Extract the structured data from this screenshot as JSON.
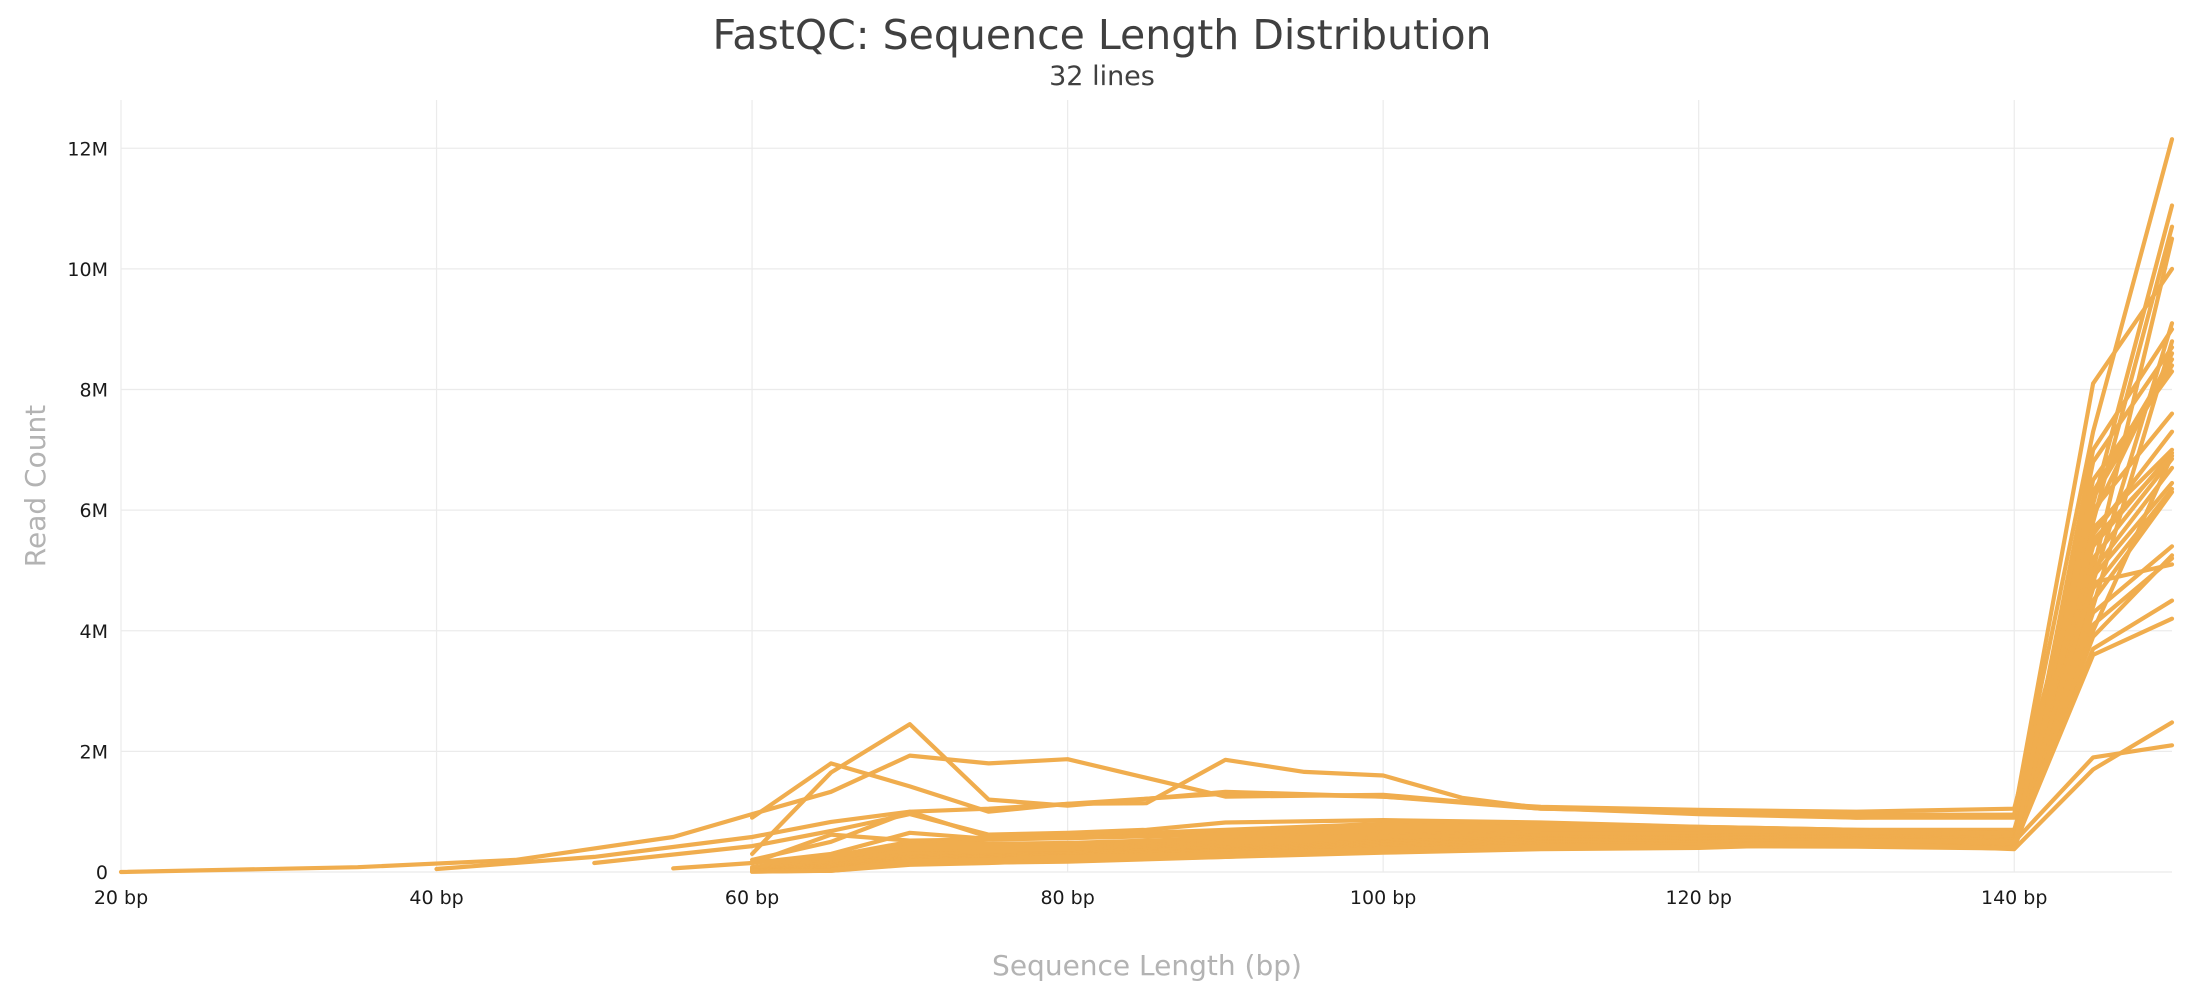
{
  "chart_data": {
    "type": "line",
    "title": "FastQC: Sequence Length Distribution",
    "subtitle": "32 lines",
    "xlabel": "Sequence Length (bp)",
    "ylabel": "Read Count",
    "xlim": [
      20,
      150
    ],
    "ylim": [
      0,
      12800000
    ],
    "x_ticks": [
      20,
      40,
      60,
      80,
      100,
      120,
      140
    ],
    "x_tick_labels": [
      "20 bp",
      "40 bp",
      "60 bp",
      "80 bp",
      "100 bp",
      "120 bp",
      "140 bp"
    ],
    "y_ticks": [
      0,
      2000000,
      4000000,
      6000000,
      8000000,
      10000000,
      12000000
    ],
    "y_tick_labels": [
      "0",
      "2M",
      "4M",
      "6M",
      "8M",
      "10M",
      "12M"
    ],
    "grid": true,
    "legend": "none",
    "line_color": "#f0ad4e",
    "series": [
      {
        "x": [
          20,
          35,
          45,
          55,
          60,
          65,
          70,
          75,
          80,
          90,
          100,
          110,
          120,
          130,
          140,
          145,
          150
        ],
        "values": [
          0,
          80000,
          200000,
          580000,
          960000,
          1330000,
          1930000,
          1800000,
          1870000,
          1250000,
          1280000,
          1050000,
          1000000,
          900000,
          950000,
          8100000,
          10000000
        ]
      },
      {
        "x": [
          60,
          65,
          70,
          75,
          80,
          85,
          90,
          95,
          100,
          105,
          110,
          120,
          130,
          140,
          145,
          150
        ],
        "values": [
          900000,
          1800000,
          1420000,
          1000000,
          1130000,
          1140000,
          1860000,
          1660000,
          1600000,
          1230000,
          1060000,
          960000,
          900000,
          900000,
          7300000,
          12150000
        ]
      },
      {
        "x": [
          60,
          65,
          70,
          75,
          80,
          90,
          100,
          110,
          120,
          130,
          140,
          145,
          150
        ],
        "values": [
          300000,
          1650000,
          2450000,
          1200000,
          1100000,
          1330000,
          1250000,
          1080000,
          1030000,
          1000000,
          1050000,
          6100000,
          11050000
        ]
      },
      {
        "x": [
          40,
          50,
          60,
          65,
          70,
          75,
          80,
          90,
          100,
          110,
          120,
          130,
          140,
          145,
          150
        ],
        "values": [
          50000,
          250000,
          580000,
          830000,
          1000000,
          1050000,
          1130000,
          1300000,
          1250000,
          1050000,
          1000000,
          950000,
          950000,
          5800000,
          10700000
        ]
      },
      {
        "x": [
          50,
          60,
          65,
          70,
          75,
          80,
          85,
          90,
          100,
          110,
          120,
          130,
          140,
          145,
          150
        ],
        "values": [
          150000,
          430000,
          680000,
          960000,
          620000,
          650000,
          700000,
          820000,
          860000,
          820000,
          750000,
          700000,
          700000,
          5000000,
          10500000
        ]
      },
      {
        "x": [
          60,
          65,
          70,
          75,
          80,
          90,
          100,
          110,
          120,
          130,
          140,
          145,
          150
        ],
        "values": [
          200000,
          500000,
          1000000,
          580000,
          600000,
          700000,
          800000,
          780000,
          750000,
          700000,
          650000,
          4800000,
          9100000
        ]
      },
      {
        "x": [
          60,
          65,
          70,
          75,
          80,
          90,
          100,
          110,
          120,
          130,
          140,
          145,
          150
        ],
        "values": [
          150000,
          300000,
          650000,
          550000,
          560000,
          650000,
          780000,
          750000,
          700000,
          680000,
          650000,
          4400000,
          8800000
        ]
      },
      {
        "x": [
          55,
          60,
          65,
          70,
          80,
          90,
          100,
          110,
          120,
          130,
          140,
          145,
          150
        ],
        "values": [
          60000,
          150000,
          620000,
          520000,
          560000,
          620000,
          720000,
          720000,
          700000,
          680000,
          640000,
          5900000,
          8600000
        ]
      },
      {
        "x": [
          60,
          65,
          70,
          75,
          80,
          90,
          100,
          110,
          120,
          130,
          140,
          145,
          150
        ],
        "values": [
          80000,
          260000,
          500000,
          470000,
          480000,
          560000,
          660000,
          680000,
          670000,
          660000,
          620000,
          6200000,
          8400000
        ]
      },
      {
        "x": [
          60,
          65,
          70,
          80,
          90,
          100,
          110,
          120,
          130,
          140,
          145,
          150
        ],
        "values": [
          60000,
          200000,
          460000,
          420000,
          520000,
          620000,
          650000,
          650000,
          640000,
          600000,
          6500000,
          8300000
        ]
      },
      {
        "x": [
          60,
          65,
          70,
          80,
          90,
          100,
          110,
          120,
          130,
          140,
          145,
          150
        ],
        "values": [
          50000,
          180000,
          420000,
          400000,
          490000,
          600000,
          630000,
          630000,
          620000,
          580000,
          6000000,
          7600000
        ]
      },
      {
        "x": [
          60,
          65,
          70,
          80,
          90,
          100,
          110,
          120,
          130,
          140,
          145,
          150
        ],
        "values": [
          40000,
          150000,
          380000,
          380000,
          470000,
          580000,
          610000,
          610000,
          600000,
          560000,
          5600000,
          7300000
        ]
      },
      {
        "x": [
          60,
          65,
          70,
          80,
          90,
          100,
          110,
          120,
          130,
          140,
          145,
          150
        ],
        "values": [
          40000,
          140000,
          360000,
          360000,
          450000,
          560000,
          600000,
          600000,
          590000,
          560000,
          5400000,
          6950000
        ]
      },
      {
        "x": [
          60,
          65,
          70,
          80,
          90,
          100,
          110,
          120,
          130,
          140,
          145,
          150
        ],
        "values": [
          30000,
          120000,
          330000,
          340000,
          430000,
          540000,
          580000,
          590000,
          580000,
          540000,
          5200000,
          6850000
        ]
      },
      {
        "x": [
          60,
          65,
          70,
          80,
          90,
          100,
          110,
          120,
          130,
          140,
          145,
          150
        ],
        "values": [
          30000,
          110000,
          310000,
          320000,
          410000,
          520000,
          570000,
          580000,
          570000,
          530000,
          5000000,
          6700000
        ]
      },
      {
        "x": [
          60,
          65,
          70,
          80,
          90,
          100,
          110,
          120,
          130,
          140,
          145,
          150
        ],
        "values": [
          30000,
          100000,
          300000,
          310000,
          400000,
          510000,
          560000,
          570000,
          560000,
          520000,
          4900000,
          6450000
        ]
      },
      {
        "x": [
          60,
          65,
          70,
          80,
          90,
          100,
          110,
          120,
          130,
          140,
          145,
          150
        ],
        "values": [
          20000,
          90000,
          280000,
          300000,
          380000,
          500000,
          550000,
          560000,
          550000,
          510000,
          4700000,
          6350000
        ]
      },
      {
        "x": [
          60,
          65,
          70,
          80,
          90,
          100,
          110,
          120,
          130,
          140,
          145,
          150
        ],
        "values": [
          20000,
          80000,
          260000,
          290000,
          370000,
          490000,
          540000,
          550000,
          540000,
          500000,
          4500000,
          6300000
        ]
      },
      {
        "x": [
          60,
          65,
          70,
          80,
          90,
          100,
          110,
          120,
          130,
          140,
          145,
          150
        ],
        "values": [
          20000,
          70000,
          250000,
          280000,
          360000,
          480000,
          530000,
          540000,
          530000,
          490000,
          4300000,
          5400000
        ]
      },
      {
        "x": [
          60,
          65,
          70,
          80,
          90,
          100,
          110,
          120,
          130,
          140,
          145,
          150
        ],
        "values": [
          20000,
          60000,
          240000,
          270000,
          350000,
          470000,
          520000,
          530000,
          520000,
          480000,
          4100000,
          5200000
        ]
      },
      {
        "x": [
          60,
          65,
          70,
          80,
          90,
          100,
          110,
          120,
          130,
          140,
          145,
          150
        ],
        "values": [
          15000,
          60000,
          230000,
          260000,
          340000,
          460000,
          510000,
          520000,
          510000,
          470000,
          4800000,
          5100000
        ]
      },
      {
        "x": [
          60,
          65,
          70,
          80,
          90,
          100,
          110,
          120,
          130,
          140,
          145,
          150
        ],
        "values": [
          15000,
          50000,
          220000,
          250000,
          330000,
          450000,
          500000,
          510000,
          500000,
          460000,
          3900000,
          5250000
        ]
      },
      {
        "x": [
          60,
          65,
          70,
          80,
          90,
          100,
          110,
          120,
          130,
          140,
          145,
          150
        ],
        "values": [
          15000,
          50000,
          210000,
          240000,
          320000,
          440000,
          490000,
          500000,
          490000,
          450000,
          3700000,
          4500000
        ]
      },
      {
        "x": [
          60,
          65,
          70,
          80,
          90,
          100,
          110,
          120,
          130,
          140,
          145,
          150
        ],
        "values": [
          10000,
          40000,
          200000,
          230000,
          310000,
          430000,
          480000,
          490000,
          480000,
          440000,
          3600000,
          4200000
        ]
      },
      {
        "x": [
          60,
          65,
          70,
          80,
          90,
          100,
          110,
          120,
          130,
          140,
          145,
          150
        ],
        "values": [
          10000,
          40000,
          190000,
          220000,
          300000,
          420000,
          470000,
          480000,
          470000,
          430000,
          5500000,
          6900000
        ]
      },
      {
        "x": [
          60,
          65,
          70,
          80,
          90,
          100,
          110,
          120,
          130,
          140,
          145,
          150
        ],
        "values": [
          10000,
          35000,
          180000,
          210000,
          290000,
          410000,
          460000,
          470000,
          460000,
          420000,
          5700000,
          7000000
        ]
      },
      {
        "x": [
          60,
          65,
          70,
          80,
          90,
          100,
          110,
          120,
          130,
          140,
          145,
          150
        ],
        "values": [
          10000,
          30000,
          170000,
          200000,
          280000,
          400000,
          450000,
          460000,
          450000,
          410000,
          6300000,
          8500000
        ]
      },
      {
        "x": [
          60,
          65,
          70,
          80,
          90,
          100,
          110,
          120,
          130,
          140,
          145,
          150
        ],
        "values": [
          10000,
          30000,
          160000,
          190000,
          270000,
          390000,
          440000,
          450000,
          440000,
          400000,
          6800000,
          8700000
        ]
      },
      {
        "x": [
          60,
          65,
          70,
          80,
          90,
          100,
          110,
          120,
          130,
          140,
          145,
          150
        ],
        "values": [
          10000,
          25000,
          150000,
          180000,
          260000,
          380000,
          430000,
          440000,
          430000,
          400000,
          7000000,
          9000000
        ]
      },
      {
        "x": [
          60,
          65,
          70,
          80,
          90,
          100,
          110,
          120,
          130,
          140,
          145,
          150
        ],
        "values": [
          10000,
          20000,
          140000,
          170000,
          250000,
          370000,
          420000,
          430000,
          420000,
          390000,
          4000000,
          6900000
        ]
      },
      {
        "x": [
          60,
          65,
          70,
          75,
          80,
          90,
          100,
          110,
          120,
          130,
          140,
          145,
          150
        ],
        "values": [
          5000,
          30000,
          180000,
          200000,
          250000,
          300000,
          380000,
          400000,
          420000,
          520000,
          500000,
          1900000,
          2100000
        ]
      },
      {
        "x": [
          60,
          65,
          70,
          75,
          80,
          90,
          100,
          110,
          120,
          130,
          140,
          145,
          150
        ],
        "values": [
          5000,
          20000,
          120000,
          150000,
          200000,
          250000,
          320000,
          380000,
          400000,
          480000,
          380000,
          1700000,
          2480000
        ]
      }
    ]
  }
}
